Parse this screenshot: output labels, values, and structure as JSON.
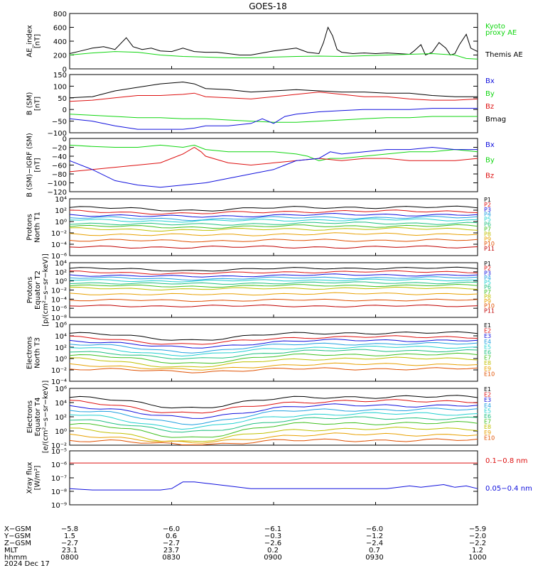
{
  "title": "GOES-18",
  "colors": {
    "black": "#000000",
    "green": "#11d611",
    "blue": "#1010dd",
    "red": "#dd1010",
    "channels": [
      "#000000",
      "#dd1010",
      "#1010dd",
      "#1fa0e0",
      "#20d0d0",
      "#20c080",
      "#40c020",
      "#c0c000",
      "#e8a000",
      "#e05000",
      "#c00000"
    ]
  },
  "chart_data": [
    {
      "type": "line",
      "ylabel": [
        "AE_index",
        "[nT]"
      ],
      "ylim": [
        0,
        800
      ],
      "yticks": [
        {
          "v": 0,
          "l": "0"
        },
        {
          "v": 200,
          "l": "200"
        },
        {
          "v": 400,
          "l": "400"
        },
        {
          "v": 600,
          "l": "600"
        },
        {
          "v": 800,
          "l": "800"
        }
      ],
      "legend": [
        {
          "text": "Kyoto",
          "color": "green"
        },
        {
          "text": "proxy AE",
          "color": "green"
        },
        {
          "text": "Themis AE",
          "color": "black"
        }
      ],
      "series": [
        {
          "name": "Themis AE",
          "color": "black",
          "x": [
            0,
            5,
            10,
            15,
            20,
            25,
            28,
            32,
            36,
            40,
            45,
            50,
            55,
            60,
            65,
            70,
            75,
            80,
            85,
            90,
            95,
            100,
            105,
            110,
            112,
            114,
            116,
            118,
            120,
            125,
            130,
            135,
            140,
            145,
            150,
            152,
            155,
            157,
            160,
            163,
            166,
            168,
            170,
            172,
            175,
            177,
            180
          ],
          "y": [
            220,
            260,
            300,
            320,
            280,
            450,
            320,
            280,
            300,
            260,
            250,
            300,
            250,
            240,
            240,
            220,
            200,
            200,
            230,
            260,
            280,
            300,
            240,
            220,
            380,
            600,
            480,
            280,
            240,
            220,
            230,
            220,
            230,
            220,
            210,
            260,
            350,
            200,
            240,
            380,
            300,
            200,
            220,
            350,
            500,
            300,
            250
          ]
        },
        {
          "name": "Kyoto proxy AE",
          "color": "green",
          "x": [
            0,
            10,
            20,
            30,
            40,
            50,
            60,
            70,
            80,
            90,
            100,
            110,
            120,
            130,
            140,
            150,
            160,
            170,
            175,
            180
          ],
          "y": [
            200,
            230,
            250,
            240,
            200,
            180,
            170,
            160,
            160,
            170,
            180,
            185,
            180,
            190,
            200,
            210,
            220,
            200,
            150,
            140
          ]
        }
      ]
    },
    {
      "type": "line",
      "ylabel": [
        "B (SM)",
        "[nT]"
      ],
      "ylim": [
        -100,
        150
      ],
      "yticks": [
        {
          "v": -100,
          "l": "−100"
        },
        {
          "v": -50,
          "l": "−50"
        },
        {
          "v": 0,
          "l": "0"
        },
        {
          "v": 50,
          "l": "50"
        },
        {
          "v": 100,
          "l": "100"
        },
        {
          "v": 150,
          "l": "150"
        }
      ],
      "legend": [
        {
          "text": "Bx",
          "color": "blue"
        },
        {
          "text": "By",
          "color": "green"
        },
        {
          "text": "Bz",
          "color": "red"
        },
        {
          "text": "Bmag",
          "color": "black"
        }
      ],
      "series": [
        {
          "name": "Bmag",
          "color": "black",
          "x": [
            0,
            10,
            20,
            30,
            40,
            50,
            55,
            60,
            70,
            80,
            90,
            100,
            110,
            120,
            130,
            140,
            150,
            160,
            170,
            180
          ],
          "y": [
            50,
            55,
            80,
            95,
            110,
            118,
            110,
            90,
            85,
            75,
            80,
            85,
            80,
            75,
            75,
            70,
            70,
            60,
            55,
            55
          ]
        },
        {
          "name": "Bz",
          "color": "red",
          "x": [
            0,
            10,
            20,
            30,
            40,
            50,
            55,
            60,
            70,
            80,
            90,
            100,
            110,
            120,
            130,
            140,
            150,
            160,
            170,
            180
          ],
          "y": [
            35,
            40,
            50,
            60,
            60,
            65,
            70,
            55,
            50,
            45,
            55,
            65,
            75,
            65,
            55,
            55,
            45,
            40,
            40,
            45
          ]
        },
        {
          "name": "By",
          "color": "green",
          "x": [
            0,
            10,
            20,
            30,
            40,
            50,
            60,
            70,
            80,
            90,
            100,
            110,
            120,
            130,
            140,
            150,
            160,
            170,
            180
          ],
          "y": [
            -20,
            -25,
            -30,
            -35,
            -35,
            -40,
            -40,
            -45,
            -50,
            -55,
            -55,
            -50,
            -45,
            -40,
            -35,
            -35,
            -30,
            -30,
            -30
          ]
        },
        {
          "name": "Bx",
          "color": "blue",
          "x": [
            0,
            10,
            20,
            30,
            40,
            50,
            55,
            60,
            70,
            80,
            85,
            90,
            95,
            100,
            110,
            120,
            130,
            140,
            150,
            160,
            170,
            180
          ],
          "y": [
            -40,
            -50,
            -70,
            -85,
            -85,
            -85,
            -80,
            -70,
            -70,
            -60,
            -40,
            -60,
            -30,
            -20,
            -10,
            -5,
            0,
            0,
            0,
            5,
            5,
            5
          ]
        }
      ]
    },
    {
      "type": "line",
      "ylabel": [
        "B (SM)−IGRF (SM)",
        "[nT]"
      ],
      "ylim": [
        -120,
        0
      ],
      "yticks": [
        {
          "v": -120,
          "l": "−120"
        },
        {
          "v": -100,
          "l": "−100"
        },
        {
          "v": -80,
          "l": "−80"
        },
        {
          "v": -60,
          "l": "−60"
        },
        {
          "v": -40,
          "l": "−40"
        },
        {
          "v": -20,
          "l": "−20"
        },
        {
          "v": 0,
          "l": "0"
        }
      ],
      "legend": [
        {
          "text": "Bx",
          "color": "blue"
        },
        {
          "text": "By",
          "color": "green"
        },
        {
          "text": "Bz",
          "color": "red"
        }
      ],
      "series": [
        {
          "name": "By",
          "color": "green",
          "x": [
            0,
            10,
            20,
            30,
            40,
            50,
            55,
            60,
            70,
            80,
            90,
            100,
            105,
            110,
            115,
            120,
            130,
            140,
            150,
            160,
            170,
            180
          ],
          "y": [
            -15,
            -18,
            -20,
            -20,
            -15,
            -20,
            -15,
            -25,
            -30,
            -30,
            -30,
            -35,
            -40,
            -50,
            -45,
            -45,
            -40,
            -35,
            -30,
            -30,
            -25,
            -30
          ]
        },
        {
          "name": "Bz",
          "color": "red",
          "x": [
            0,
            10,
            20,
            30,
            40,
            50,
            55,
            58,
            60,
            70,
            80,
            90,
            100,
            110,
            120,
            130,
            140,
            150,
            160,
            170,
            180
          ],
          "y": [
            -75,
            -70,
            -65,
            -60,
            -55,
            -35,
            -20,
            -30,
            -40,
            -55,
            -60,
            -55,
            -50,
            -45,
            -50,
            -45,
            -45,
            -50,
            -50,
            -50,
            -45
          ]
        },
        {
          "name": "Bx",
          "color": "blue",
          "x": [
            0,
            10,
            20,
            30,
            40,
            50,
            60,
            70,
            80,
            90,
            95,
            100,
            110,
            115,
            120,
            130,
            140,
            150,
            160,
            170,
            180
          ],
          "y": [
            -50,
            -70,
            -95,
            -105,
            -110,
            -105,
            -100,
            -90,
            -80,
            -70,
            -60,
            -50,
            -45,
            -30,
            -35,
            -30,
            -25,
            -25,
            -20,
            -25,
            -25
          ]
        }
      ]
    },
    {
      "type": "line",
      "ylabel": [
        "Protons",
        "North T1"
      ],
      "log": true,
      "ylim": [
        -6,
        4
      ],
      "yticks": [
        {
          "v": -6,
          "l": "10⁻⁶"
        },
        {
          "v": -4,
          "l": "10⁻⁴"
        },
        {
          "v": -2,
          "l": "10⁻²"
        },
        {
          "v": 0,
          "l": "10⁰"
        },
        {
          "v": 2,
          "l": "10²"
        },
        {
          "v": 4,
          "l": "10⁴"
        }
      ],
      "channels": [
        "P1",
        "P2",
        "P3",
        "P4",
        "P5",
        "P6",
        "P7",
        "P8",
        "P9",
        "P10",
        "P11"
      ],
      "levels": [
        2.5,
        1.8,
        1.2,
        0.7,
        0.3,
        -0.3,
        -0.8,
        -1.3,
        -2.2,
        -3.3,
        -4.5
      ],
      "dip": [
        0.5,
        0.4,
        0.35,
        0.3,
        0.25,
        0.25,
        0.2,
        0.2,
        0.2,
        0.1,
        0.0
      ]
    },
    {
      "type": "line",
      "ylabel": [
        "Protons",
        "Equator T2",
        "[p/(cm²−s−sr−keV)]"
      ],
      "log": true,
      "ylim": [
        -8,
        4
      ],
      "yticks": [
        {
          "v": -8,
          "l": "10⁻⁸"
        },
        {
          "v": -6,
          "l": "10⁻⁶"
        },
        {
          "v": -4,
          "l": "10⁻⁴"
        },
        {
          "v": -2,
          "l": "10⁻²"
        },
        {
          "v": 0,
          "l": "10⁰"
        },
        {
          "v": 2,
          "l": "10²"
        },
        {
          "v": 4,
          "l": "10⁴"
        }
      ],
      "channels": [
        "P1",
        "P2",
        "P3",
        "P4",
        "P5",
        "P6",
        "P7",
        "P8",
        "P9",
        "P10",
        "P11"
      ],
      "levels": [
        2.8,
        2.0,
        1.3,
        0.7,
        0.2,
        -0.4,
        -1.0,
        -1.6,
        -2.8,
        -4.2,
        -5.5
      ],
      "dip": [
        0.5,
        0.4,
        0.35,
        0.3,
        0.25,
        0.25,
        0.2,
        0.2,
        0.2,
        0.1,
        0.0
      ]
    },
    {
      "type": "line",
      "ylabel": [
        "Electrons",
        "North T3"
      ],
      "log": true,
      "ylim": [
        -4,
        6
      ],
      "yticks": [
        {
          "v": -4,
          "l": "10⁻⁴"
        },
        {
          "v": -2,
          "l": "10⁻²"
        },
        {
          "v": 0,
          "l": "10⁰"
        },
        {
          "v": 2,
          "l": "10²"
        },
        {
          "v": 4,
          "l": "10⁴"
        },
        {
          "v": 6,
          "l": "10⁶"
        }
      ],
      "channels": [
        "E1",
        "E2",
        "E3",
        "E4",
        "E5",
        "E6",
        "E7",
        "E8",
        "E9",
        "E10"
      ],
      "levels": [
        4.5,
        3.8,
        3.2,
        2.6,
        2.0,
        1.4,
        0.7,
        0.0,
        -1.0,
        -1.8
      ],
      "dip": [
        1.2,
        1.3,
        1.3,
        1.4,
        1.4,
        1.5,
        1.5,
        1.5,
        1.0,
        0.5
      ]
    },
    {
      "type": "line",
      "ylabel": [
        "Electrons",
        "Equator T4",
        "[e/(cm²−s−sr−keV)]"
      ],
      "log": true,
      "ylim": [
        -2,
        6
      ],
      "yticks": [
        {
          "v": -2,
          "l": "10⁻²"
        },
        {
          "v": 0,
          "l": "10⁰"
        },
        {
          "v": 2,
          "l": "10²"
        },
        {
          "v": 4,
          "l": "10⁴"
        },
        {
          "v": 6,
          "l": "10⁶"
        }
      ],
      "channels": [
        "E1",
        "E2",
        "E3",
        "E4",
        "E5",
        "E6",
        "E7",
        "E8",
        "E9",
        "E10"
      ],
      "levels": [
        4.8,
        4.2,
        3.6,
        3.0,
        2.4,
        1.8,
        1.1,
        0.3,
        -0.5,
        -1.3
      ],
      "dip": [
        1.5,
        1.7,
        1.8,
        1.9,
        2.0,
        2.0,
        2.0,
        1.8,
        1.2,
        0.6
      ]
    },
    {
      "type": "line",
      "ylabel": [
        "Xray flux",
        "[W/m²]"
      ],
      "log": true,
      "ylim": [
        -9,
        -5
      ],
      "yticks": [
        {
          "v": -9,
          "l": "10⁻⁹"
        },
        {
          "v": -8,
          "l": "10⁻⁸"
        },
        {
          "v": -7,
          "l": "10⁻⁷"
        },
        {
          "v": -6,
          "l": "10⁻⁶"
        },
        {
          "v": -5,
          "l": "10⁻⁵"
        }
      ],
      "legend": [
        {
          "text": "0.1−0.8 nm",
          "color": "red"
        },
        {
          "text": "0.05−0.4 nm",
          "color": "blue"
        }
      ],
      "series": [
        {
          "name": "0.1−0.8 nm",
          "color": "red",
          "x": [
            0,
            30,
            60,
            90,
            120,
            150,
            180
          ],
          "y": [
            -5.9,
            -5.9,
            -5.9,
            -5.9,
            -5.9,
            -5.9,
            -5.9
          ]
        },
        {
          "name": "0.05−0.4 nm",
          "color": "blue",
          "x": [
            0,
            10,
            20,
            30,
            40,
            45,
            50,
            55,
            60,
            70,
            80,
            90,
            100,
            110,
            120,
            130,
            140,
            150,
            155,
            160,
            165,
            170,
            175,
            180
          ],
          "y": [
            -7.8,
            -7.9,
            -7.9,
            -7.9,
            -7.9,
            -7.8,
            -7.3,
            -7.3,
            -7.4,
            -7.6,
            -7.8,
            -7.8,
            -7.8,
            -7.8,
            -7.8,
            -7.8,
            -7.8,
            -7.6,
            -7.7,
            -7.6,
            -7.5,
            -7.7,
            -7.6,
            -7.8
          ]
        }
      ]
    }
  ],
  "axis_table": {
    "row_labels": [
      "X−GSM",
      "Y−GSM",
      "Z−GSM",
      "MLT",
      "hhmm",
      "2024 Dec 17"
    ],
    "columns": [
      [
        "−5.8",
        "1.5",
        "−2.7",
        "23.1",
        "0800"
      ],
      [
        "−6.0",
        "0.6",
        "−2.7",
        "23.7",
        "0830"
      ],
      [
        "−6.1",
        "−0.3",
        "−2.6",
        "0.2",
        "0900"
      ],
      [
        "−6.0",
        "−1.2",
        "−2.4",
        "0.7",
        "0930"
      ],
      [
        "−5.9",
        "−2.0",
        "−2.2",
        "1.2",
        "1000"
      ]
    ]
  }
}
